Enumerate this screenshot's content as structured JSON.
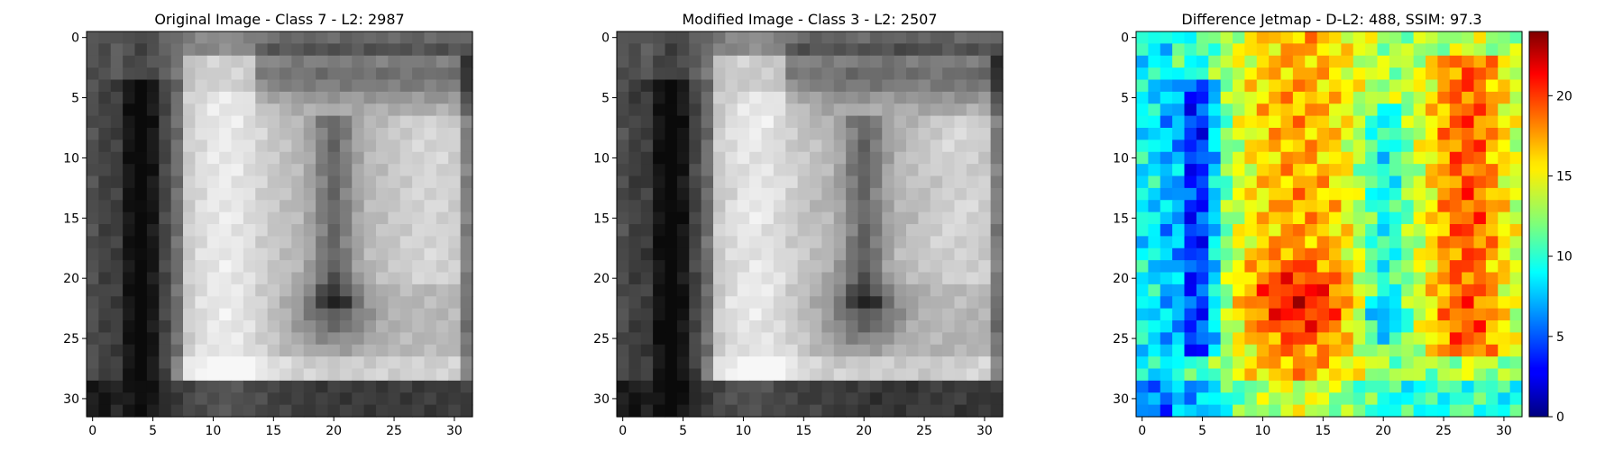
{
  "chart_data": [
    {
      "type": "heatmap",
      "title": "Original Image - Class 7 - L2: 2987",
      "title_color": "#000000",
      "colormap": "gray",
      "grid_size": [
        32,
        32
      ],
      "xticks": [
        0,
        5,
        10,
        15,
        20,
        25,
        30
      ],
      "yticks": [
        0,
        5,
        10,
        15,
        20,
        25,
        30
      ],
      "xlim": [
        -0.5,
        31.5
      ],
      "ylim": [
        31.5,
        -0.5
      ],
      "grid": false
    },
    {
      "type": "heatmap",
      "title": "Modified Image - Class 3 - L2: 2507",
      "title_color": "#ff0000",
      "colormap": "gray",
      "grid_size": [
        32,
        32
      ],
      "xticks": [
        0,
        5,
        10,
        15,
        20,
        25,
        30
      ],
      "yticks": [
        0,
        5,
        10,
        15,
        20,
        25,
        30
      ],
      "xlim": [
        -0.5,
        31.5
      ],
      "ylim": [
        31.5,
        -0.5
      ],
      "grid": false
    },
    {
      "type": "heatmap",
      "title": "Difference Jetmap - D-L2: 488, SSIM: 97.3",
      "title_color": "#000000",
      "colormap": "jet",
      "grid_size": [
        32,
        32
      ],
      "xticks": [
        0,
        5,
        10,
        15,
        20,
        25,
        30
      ],
      "yticks": [
        0,
        5,
        10,
        15,
        20,
        25,
        30
      ],
      "xlim": [
        -0.5,
        31.5
      ],
      "ylim": [
        31.5,
        -0.5
      ],
      "grid": false,
      "colorbar": {
        "range": [
          0,
          24
        ],
        "ticks": [
          0,
          5,
          10,
          15,
          20
        ]
      }
    }
  ]
}
